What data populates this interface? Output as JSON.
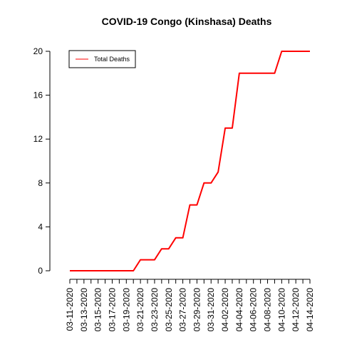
{
  "chart_data": {
    "type": "line",
    "title": "COVID-19 Congo (Kinshasa) Deaths",
    "xlabel": "",
    "ylabel": "",
    "x": [
      "03-11-2020",
      "03-12-2020",
      "03-13-2020",
      "03-14-2020",
      "03-15-2020",
      "03-16-2020",
      "03-17-2020",
      "03-18-2020",
      "03-19-2020",
      "03-20-2020",
      "03-21-2020",
      "03-22-2020",
      "03-23-2020",
      "03-24-2020",
      "03-25-2020",
      "03-26-2020",
      "03-27-2020",
      "03-28-2020",
      "03-29-2020",
      "03-30-2020",
      "03-31-2020",
      "04-01-2020",
      "04-02-2020",
      "04-03-2020",
      "04-04-2020",
      "04-05-2020",
      "04-06-2020",
      "04-07-2020",
      "04-08-2020",
      "04-09-2020",
      "04-10-2020",
      "04-11-2020",
      "04-12-2020",
      "04-13-2020",
      "04-14-2020"
    ],
    "x_tick_labels": [
      "03-11-2020",
      "03-13-2020",
      "03-15-2020",
      "03-17-2020",
      "03-19-2020",
      "03-21-2020",
      "03-23-2020",
      "03-25-2020",
      "03-27-2020",
      "03-29-2020",
      "03-31-2020",
      "04-02-2020",
      "04-04-2020",
      "04-06-2020",
      "04-08-2020",
      "04-10-2020",
      "04-12-2020",
      "04-14-2020"
    ],
    "y_ticks": [
      0,
      4,
      8,
      12,
      16,
      20
    ],
    "ylim": [
      0,
      20
    ],
    "grid": false,
    "legend_position": "top-left",
    "series": [
      {
        "name": "Total Deaths",
        "color": "#ff0000",
        "values": [
          0,
          0,
          0,
          0,
          0,
          0,
          0,
          0,
          0,
          0,
          1,
          1,
          1,
          2,
          2,
          3,
          3,
          6,
          6,
          8,
          8,
          9,
          13,
          13,
          18,
          18,
          18,
          18,
          18,
          18,
          20,
          20,
          20,
          20,
          20
        ]
      }
    ]
  }
}
